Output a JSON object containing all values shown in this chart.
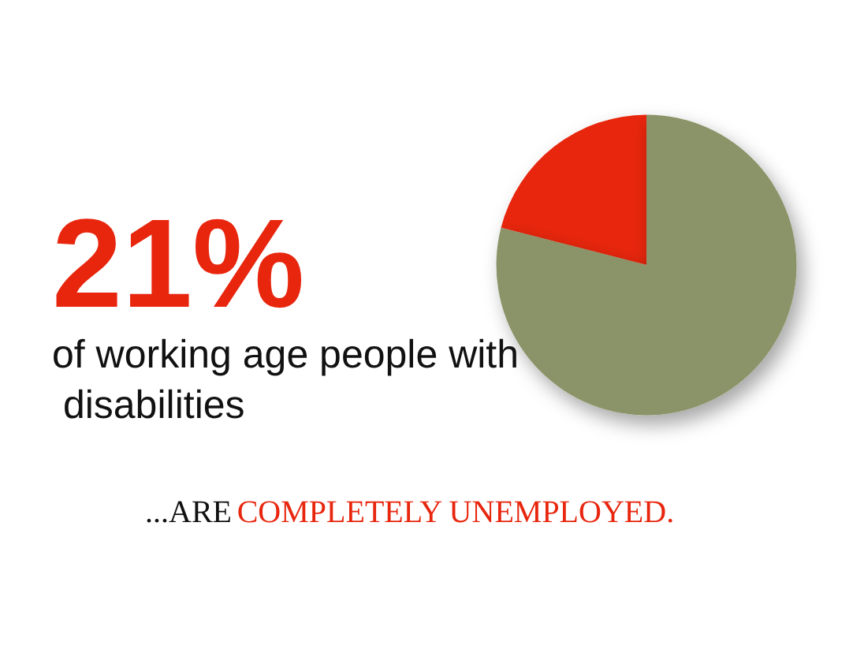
{
  "chart_data": {
    "type": "pie",
    "title": "21%",
    "subtitle": "of working age people with disabilities",
    "annotations": [
      "...ARE",
      "COMPLETELY UNEMPLOYED."
    ],
    "categories": [
      null,
      null
    ],
    "values": [
      21,
      79
    ],
    "colors": [
      "#e8260e",
      "#8b9367"
    ]
  }
}
